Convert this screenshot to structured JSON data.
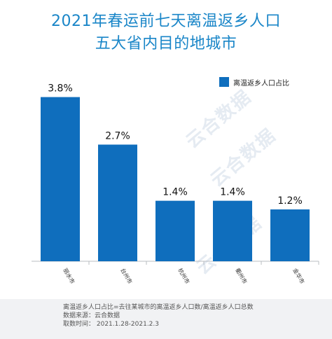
{
  "title_line1": "2021年春运前七天离温返乡人口",
  "title_line2": "五大省内目的地城市",
  "watermark": "云合数据",
  "notes": [
    "离温返乡人口占比=去往某城市的离温返乡人口数/离温返乡人口总数",
    "数据来源：云合数据",
    "取数时间： 2021.1.28-2021.2.3"
  ],
  "colors": {
    "bar": "#0f6ebd",
    "title": "#1a86c8"
  },
  "chart_data": {
    "type": "bar",
    "categories": [
      "丽水市",
      "台州市",
      "杭州市",
      "衢州市",
      "金华市"
    ],
    "series": [
      {
        "name": "离温返乡人口占比",
        "values": [
          3.8,
          2.7,
          1.4,
          1.4,
          1.2
        ]
      }
    ],
    "value_labels": [
      "3.8%",
      "2.7%",
      "1.4%",
      "1.4%",
      "1.2%"
    ],
    "unit": "%",
    "ylim": [
      0,
      4.75
    ],
    "legend_position": "top-right",
    "grid": false
  }
}
